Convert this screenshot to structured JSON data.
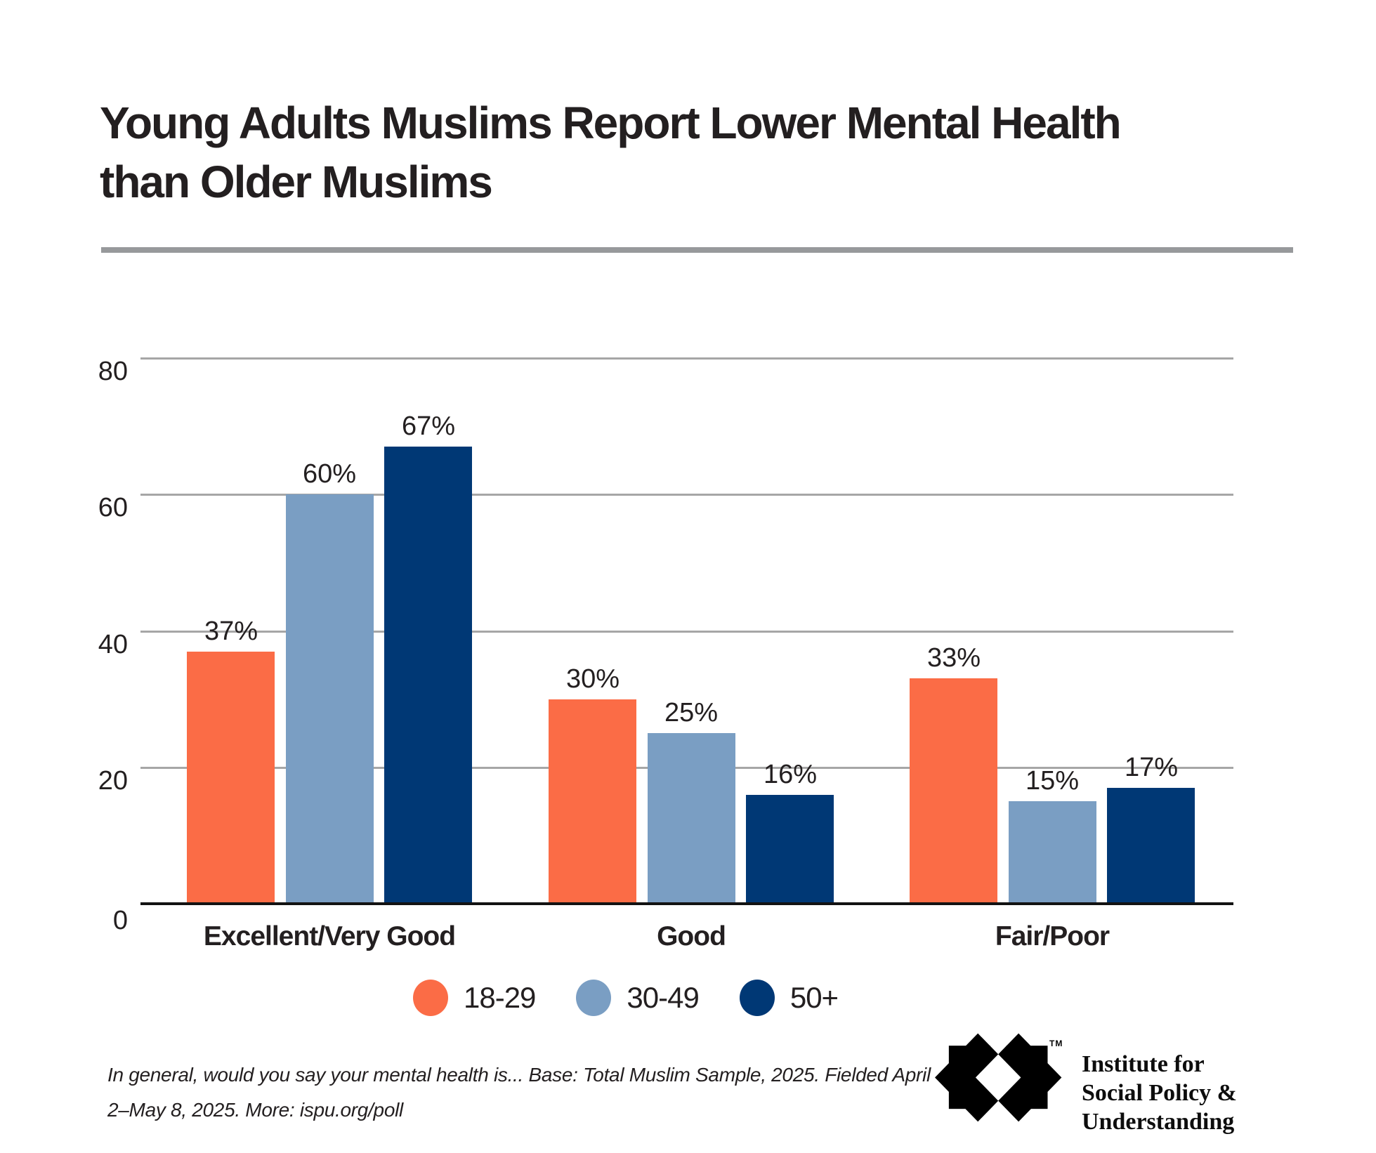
{
  "header": {
    "title_lines": [
      "Young Adults Muslims Report Lower Mental Health",
      "than Older Muslims"
    ],
    "title_color": "#231F20",
    "divider_color": "#97999B"
  },
  "chart_data": {
    "type": "bar",
    "title": "Young Adults Muslims Report Lower Mental Health than Older Muslims",
    "categories": [
      "Excellent/Very Good",
      "Good",
      "Fair/Poor"
    ],
    "series": [
      {
        "name": "18-29",
        "color": "#FB6C46",
        "values": [
          37,
          30,
          33
        ]
      },
      {
        "name": "30-49",
        "color": "#7A9EC3",
        "values": [
          60,
          25,
          15
        ]
      },
      {
        "name": "50+",
        "color": "#003875",
        "values": [
          67,
          16,
          17
        ]
      }
    ],
    "value_suffix": "%",
    "ylim": [
      0,
      80
    ],
    "yticks": [
      0,
      20,
      40,
      60,
      80
    ],
    "grid": true,
    "gridline_color": "#A6A6A6",
    "axis_color": "#131313",
    "label_color": "#231F20",
    "legend_position": "bottom"
  },
  "footnote": {
    "line1": "In general, would you say your mental health is... Base: Total Muslim Sample, 2025. Fielded April",
    "line2": "2–May 8, 2025. More: ispu.org/poll"
  },
  "logo": {
    "tm": "TM",
    "name_lines": [
      "Institute for",
      "Social Policy &",
      "Understanding"
    ]
  }
}
